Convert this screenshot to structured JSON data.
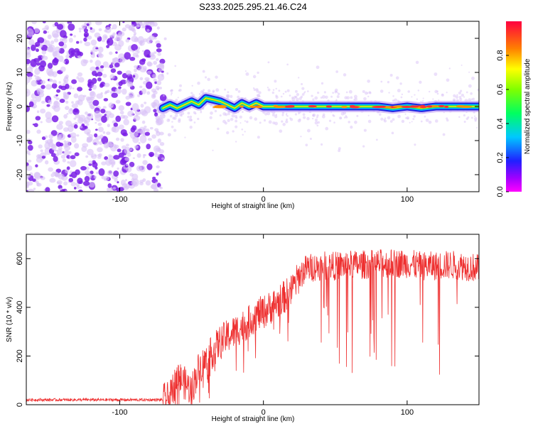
{
  "title": "S233.2025.295.21.46.C24",
  "colors": {
    "signal_line": "#ee3030",
    "noise_purple": "#7a1fe6",
    "noise_light": "#d9c2f7",
    "frame": "#000000"
  },
  "chart_data": [
    {
      "type": "heatmap",
      "name": "spectrogram",
      "xlabel": "Height of straight line (km)",
      "ylabel": "Frequency (Hz)",
      "xlim": [
        -165,
        150
      ],
      "ylim": [
        -25,
        25
      ],
      "x_ticks": [
        -100,
        0,
        100
      ],
      "x_tick_labels": [
        "-100",
        "0",
        "100"
      ],
      "y_ticks": [
        -20,
        -10,
        0,
        10,
        20
      ],
      "y_tick_labels": [
        "-20",
        "-10",
        "0",
        "10",
        "20"
      ],
      "noise_region_x": [
        -165,
        -70
      ],
      "signal_track": {
        "x": [
          -70,
          -65,
          -60,
          -55,
          -50,
          -45,
          -40,
          -35,
          -30,
          -25,
          -20,
          -15,
          -10,
          -5,
          0,
          10,
          20,
          30,
          40,
          50,
          60,
          70,
          80,
          90,
          100,
          110,
          120,
          130,
          140,
          150
        ],
        "freq": [
          -0.5,
          0.5,
          -0.5,
          0.5,
          1.5,
          0.5,
          2.5,
          2.0,
          1.5,
          0.5,
          -0.5,
          1.0,
          0.0,
          1.0,
          0.0,
          0.0,
          0.0,
          0.0,
          0.0,
          0.0,
          0.0,
          0.0,
          0.0,
          -0.5,
          0.0,
          -0.5,
          0.0,
          0.0,
          0.0,
          0.0
        ]
      },
      "colorbar": {
        "label": "Normalized spectral amplitude",
        "range": [
          0.0,
          1.0
        ],
        "ticks": [
          0.0,
          0.2,
          0.4,
          0.6,
          0.8
        ],
        "tick_labels": [
          "0.0",
          "0.2",
          "0.4",
          "0.6",
          "0.8"
        ]
      }
    },
    {
      "type": "line",
      "name": "snr",
      "xlabel": "Height of straight line (km)",
      "ylabel": "SNR (10 * v/v)",
      "xlim": [
        -165,
        150
      ],
      "ylim": [
        0,
        700
      ],
      "x_ticks": [
        -100,
        0,
        100
      ],
      "x_tick_labels": [
        "-100",
        "0",
        "100"
      ],
      "y_ticks": [
        0,
        200,
        400,
        600
      ],
      "y_tick_labels": [
        "0",
        "200",
        "400",
        "600"
      ],
      "series": [
        {
          "name": "SNR",
          "x": [
            -165,
            -70,
            -65,
            -60,
            -55,
            -50,
            -45,
            -40,
            -35,
            -30,
            -25,
            -20,
            -15,
            -10,
            -5,
            0,
            10,
            20,
            25,
            30,
            40,
            50,
            60,
            70,
            80,
            90,
            100,
            110,
            120,
            130,
            140,
            150
          ],
          "values": [
            20,
            20,
            25,
            120,
            90,
            60,
            150,
            180,
            220,
            260,
            280,
            300,
            320,
            340,
            370,
            380,
            420,
            470,
            530,
            560,
            570,
            570,
            575,
            575,
            580,
            580,
            580,
            570,
            570,
            575,
            570,
            560
          ]
        }
      ]
    }
  ]
}
